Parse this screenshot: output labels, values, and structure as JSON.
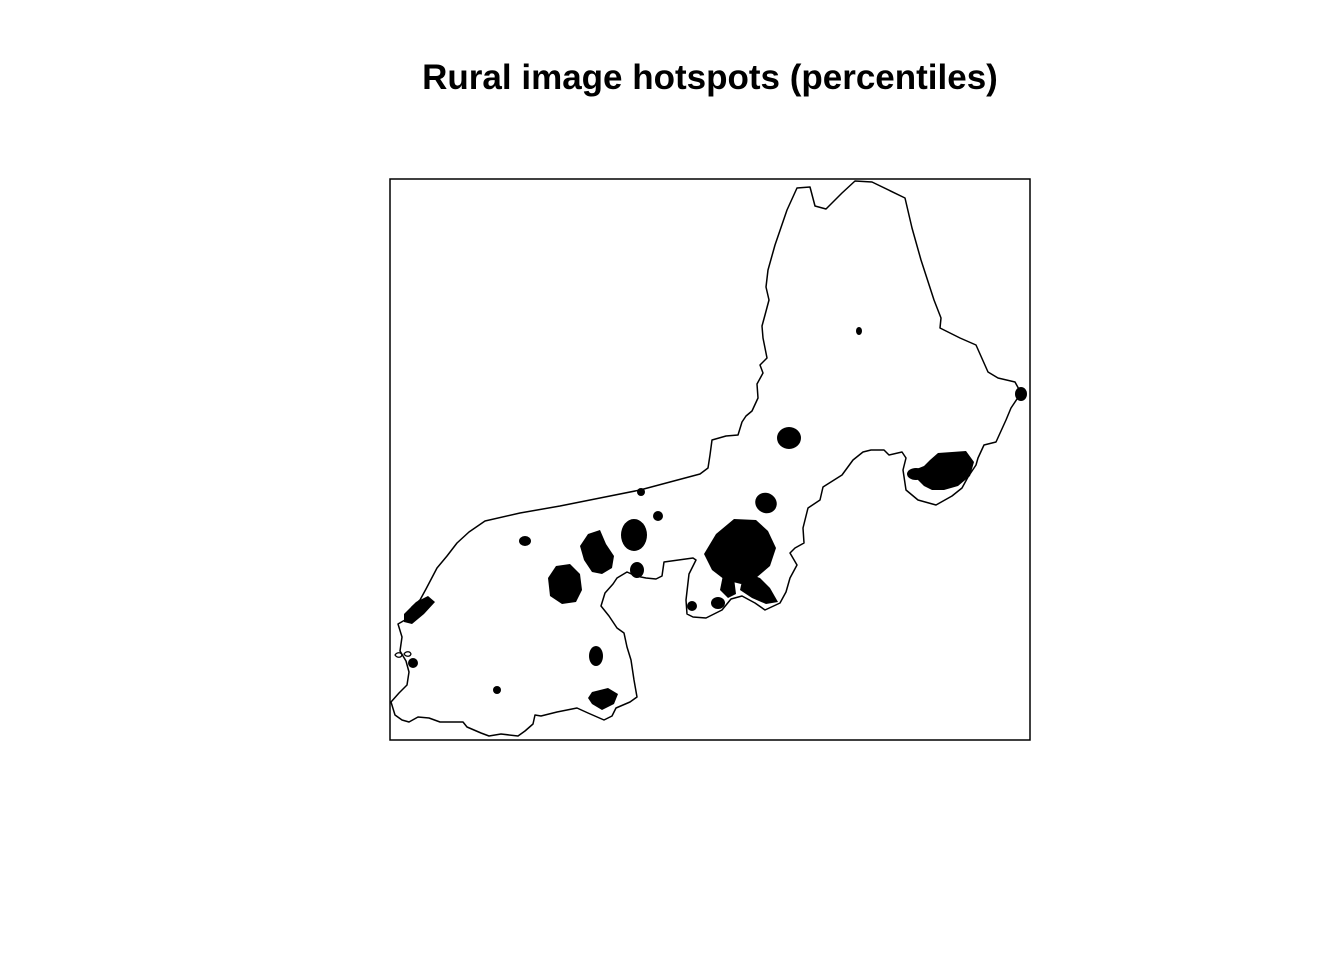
{
  "title": "Rural image hotspots (percentiles)",
  "colors": {
    "background": "#ffffff",
    "outline": "#000000",
    "hotspot": "#000000"
  }
}
